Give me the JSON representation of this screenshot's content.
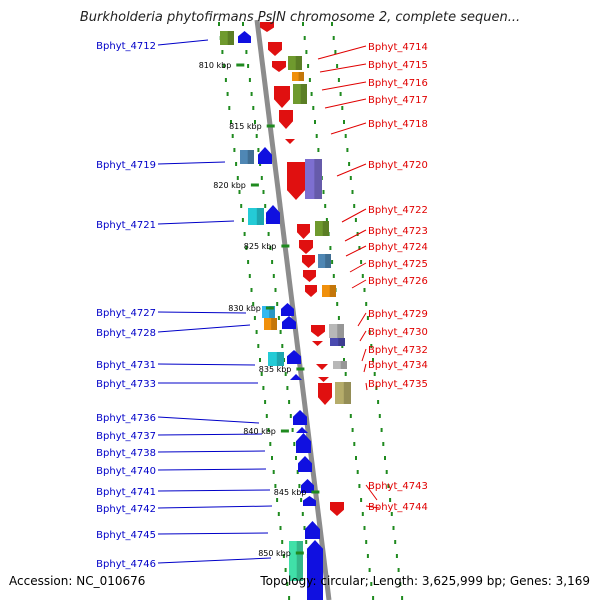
{
  "title": "Burkholderia phytofirmans PsJN chromosome 2, complete sequen...",
  "accession_line": "Accession: NC_010676",
  "topology_line": "Topology: circular; Length: 3,625,999 bp; Genes: 3,169",
  "colors": {
    "backbone": "#8c8c8c",
    "dotted_track": "#1f8a1f",
    "left_label": "#0000c8",
    "right_label": "#e00000",
    "forward_gene": "#1010e0",
    "reverse_gene": "#e01010",
    "green_feature": "#6f9a2e",
    "orange_feature": "#f0900c",
    "olive_feature": "#b5ac6a",
    "violet_feature": "#7d6fd0",
    "steel_feature": "#4f87b4",
    "cyan_feature": "#24cbd6",
    "grey_feature": "#b8b8b8",
    "mint_feature": "#40e0a8"
  },
  "ticks": [
    "810 kbp",
    "815 kbp",
    "820 kbp",
    "825 kbp",
    "830 kbp",
    "835 kbp",
    "840 kbp",
    "845 kbp",
    "850 kbp"
  ],
  "left_labels": [
    "Bphyt_4712",
    "Bphyt_4719",
    "Bphyt_4721",
    "Bphyt_4727",
    "Bphyt_4728",
    "Bphyt_4731",
    "Bphyt_4733",
    "Bphyt_4736",
    "Bphyt_4737",
    "Bphyt_4738",
    "Bphyt_4740",
    "Bphyt_4741",
    "Bphyt_4742",
    "Bphyt_4745",
    "Bphyt_4746"
  ],
  "right_labels": [
    "Bphyt_4714",
    "Bphyt_4715",
    "Bphyt_4716",
    "Bphyt_4717",
    "Bphyt_4718",
    "Bphyt_4720",
    "Bphyt_4722",
    "Bphyt_4723",
    "Bphyt_4724",
    "Bphyt_4725",
    "Bphyt_4726",
    "Bphyt_4729",
    "Bphyt_4730",
    "Bphyt_4732",
    "Bphyt_4734",
    "Bphyt_4735",
    "Bphyt_4743",
    "Bphyt_4744"
  ]
}
